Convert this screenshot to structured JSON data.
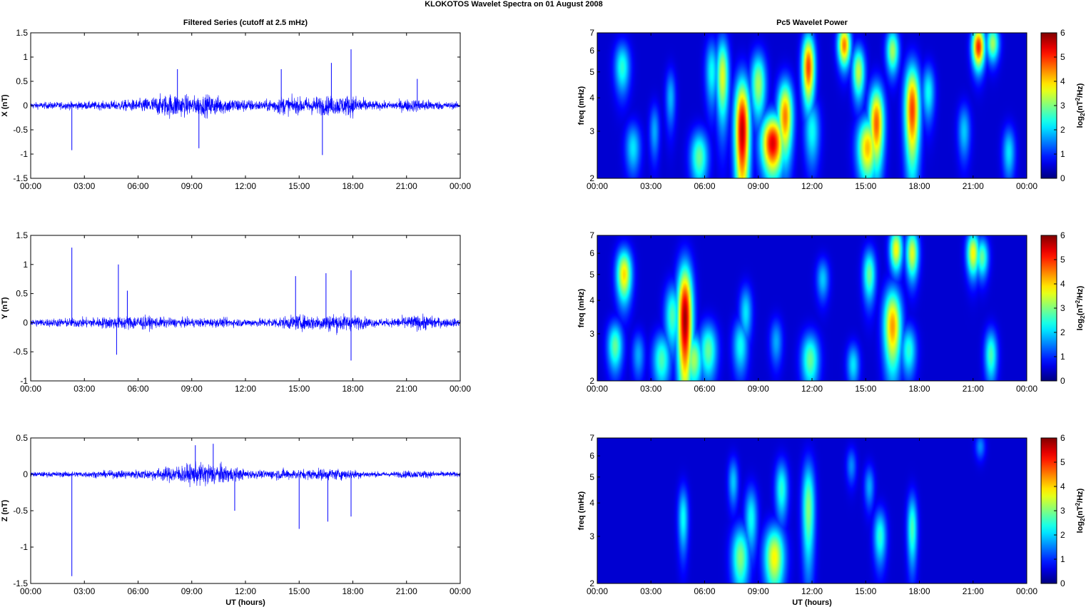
{
  "figure_title": "KLOKOTOS Wavelet Spectra on 01 August    2008",
  "left_title": "Filtered Series (cutoff at 2.5 mHz)",
  "right_title": "Pc5 Wavelet Power",
  "xlabel": "UT (hours)",
  "freq_label": "freq (mHz)",
  "x_ticks": [
    "00:00",
    "03:00",
    "06:00",
    "09:00",
    "12:00",
    "15:00",
    "18:00",
    "21:00",
    "00:00"
  ],
  "colors": {
    "series": "#0000ff",
    "axes": "#000000"
  },
  "chart_data": [
    {
      "type": "line",
      "ylabel": "X (nT)",
      "ylim": [
        -1.5,
        1.5
      ],
      "yticks": [
        -1.5,
        -1,
        -0.5,
        0,
        0.5,
        1,
        1.5
      ],
      "xlim": [
        0,
        24
      ],
      "envelope": {
        "x": [
          0,
          2,
          4,
          6,
          7,
          8,
          9,
          10,
          11,
          12,
          13,
          14,
          15,
          16,
          17,
          18,
          19,
          20,
          21,
          22,
          23,
          24
        ],
        "amplitude": [
          0.1,
          0.12,
          0.13,
          0.2,
          0.3,
          0.4,
          0.3,
          0.35,
          0.25,
          0.2,
          0.15,
          0.3,
          0.25,
          0.3,
          0.3,
          0.35,
          0.15,
          0.12,
          0.2,
          0.2,
          0.12,
          0.1
        ]
      },
      "spikes": [
        {
          "x": 2.3,
          "y": -0.92
        },
        {
          "x": 8.2,
          "y": 0.75
        },
        {
          "x": 9.4,
          "y": -0.88
        },
        {
          "x": 14.0,
          "y": 0.75
        },
        {
          "x": 16.3,
          "y": -1.02
        },
        {
          "x": 16.8,
          "y": 0.88
        },
        {
          "x": 17.9,
          "y": 1.16
        },
        {
          "x": 21.6,
          "y": 0.55
        }
      ]
    },
    {
      "type": "line",
      "ylabel": "Y (nT)",
      "ylim": [
        -1,
        1.5
      ],
      "yticks": [
        -1,
        -0.5,
        0,
        0.5,
        1,
        1.5
      ],
      "xlim": [
        0,
        24
      ],
      "envelope": {
        "x": [
          0,
          2,
          4,
          6,
          7,
          8,
          9,
          10,
          11,
          12,
          13,
          14,
          15,
          16,
          17,
          18,
          19,
          20,
          21,
          22,
          23,
          24
        ],
        "amplitude": [
          0.1,
          0.12,
          0.15,
          0.2,
          0.15,
          0.12,
          0.12,
          0.12,
          0.12,
          0.1,
          0.12,
          0.15,
          0.2,
          0.2,
          0.25,
          0.2,
          0.12,
          0.1,
          0.18,
          0.2,
          0.12,
          0.1
        ]
      },
      "spikes": [
        {
          "x": 2.3,
          "y": 1.29
        },
        {
          "x": 4.9,
          "y": 1.0
        },
        {
          "x": 5.4,
          "y": 0.55
        },
        {
          "x": 14.8,
          "y": 0.8
        },
        {
          "x": 16.5,
          "y": 0.85
        },
        {
          "x": 17.9,
          "y": 0.9
        },
        {
          "x": 17.9,
          "y": -0.65
        },
        {
          "x": 4.8,
          "y": -0.55
        }
      ]
    },
    {
      "type": "line",
      "ylabel": "Z (nT)",
      "ylim": [
        -1.5,
        0.5
      ],
      "yticks": [
        -1.5,
        -1,
        -0.5,
        0,
        0.5
      ],
      "xlim": [
        0,
        24
      ],
      "envelope": {
        "x": [
          0,
          2,
          4,
          6,
          7,
          8,
          9,
          10,
          11,
          12,
          13,
          14,
          15,
          16,
          17,
          18,
          19,
          20,
          21,
          22,
          23,
          24
        ],
        "amplitude": [
          0.05,
          0.06,
          0.07,
          0.1,
          0.12,
          0.18,
          0.22,
          0.25,
          0.18,
          0.1,
          0.08,
          0.12,
          0.1,
          0.12,
          0.12,
          0.1,
          0.06,
          0.05,
          0.08,
          0.08,
          0.06,
          0.05
        ]
      },
      "spikes": [
        {
          "x": 2.3,
          "y": -1.4
        },
        {
          "x": 9.2,
          "y": 0.4
        },
        {
          "x": 10.2,
          "y": 0.42
        },
        {
          "x": 15.0,
          "y": -0.75
        },
        {
          "x": 16.6,
          "y": -0.65
        },
        {
          "x": 17.9,
          "y": -0.58
        },
        {
          "x": 11.4,
          "y": -0.5
        }
      ]
    },
    {
      "type": "heatmap",
      "ylabel": "freq (mHz)",
      "colorbar_label": "log2(nT2/Hz)",
      "clim": [
        0,
        6
      ],
      "ylim": [
        2,
        7
      ],
      "yticks": [
        2,
        3,
        4,
        5,
        6,
        7
      ],
      "xlim": [
        0,
        24
      ],
      "blobs": [
        {
          "t": 1.4,
          "f": 5.2,
          "p": 2.2,
          "w": 0.3,
          "h": 1.6
        },
        {
          "t": 2.0,
          "f": 2.6,
          "p": 1.8,
          "w": 0.3,
          "h": 0.8
        },
        {
          "t": 5.7,
          "f": 2.4,
          "p": 2.6,
          "w": 0.35,
          "h": 0.8
        },
        {
          "t": 6.4,
          "f": 5.0,
          "p": 2.0,
          "w": 0.25,
          "h": 2.0
        },
        {
          "t": 7.0,
          "f": 4.8,
          "p": 3.4,
          "w": 0.25,
          "h": 2.4
        },
        {
          "t": 8.1,
          "f": 3.0,
          "p": 5.6,
          "w": 0.3,
          "h": 2.2
        },
        {
          "t": 9.0,
          "f": 4.5,
          "p": 3.0,
          "w": 0.3,
          "h": 1.8
        },
        {
          "t": 9.8,
          "f": 2.7,
          "p": 5.4,
          "w": 0.45,
          "h": 1.0
        },
        {
          "t": 10.5,
          "f": 3.4,
          "p": 4.4,
          "w": 0.3,
          "h": 1.6
        },
        {
          "t": 11.8,
          "f": 5.2,
          "p": 4.8,
          "w": 0.25,
          "h": 2.2
        },
        {
          "t": 12.0,
          "f": 3.0,
          "p": 2.0,
          "w": 0.3,
          "h": 1.2
        },
        {
          "t": 13.8,
          "f": 6.3,
          "p": 4.4,
          "w": 0.25,
          "h": 1.6
        },
        {
          "t": 14.6,
          "f": 5.0,
          "p": 3.2,
          "w": 0.25,
          "h": 1.6
        },
        {
          "t": 15.1,
          "f": 2.6,
          "p": 4.0,
          "w": 0.4,
          "h": 1.0
        },
        {
          "t": 15.6,
          "f": 3.2,
          "p": 4.6,
          "w": 0.3,
          "h": 1.6
        },
        {
          "t": 16.5,
          "f": 6.0,
          "p": 3.0,
          "w": 0.25,
          "h": 1.6
        },
        {
          "t": 17.6,
          "f": 3.6,
          "p": 4.8,
          "w": 0.3,
          "h": 2.2
        },
        {
          "t": 18.5,
          "f": 4.2,
          "p": 2.0,
          "w": 0.25,
          "h": 1.4
        },
        {
          "t": 20.5,
          "f": 3.0,
          "p": 1.6,
          "w": 0.25,
          "h": 1.0
        },
        {
          "t": 21.3,
          "f": 6.2,
          "p": 5.0,
          "w": 0.25,
          "h": 1.6
        },
        {
          "t": 22.1,
          "f": 6.4,
          "p": 3.0,
          "w": 0.25,
          "h": 1.4
        },
        {
          "t": 23.0,
          "f": 2.5,
          "p": 1.8,
          "w": 0.25,
          "h": 0.8
        },
        {
          "t": 4.1,
          "f": 4.0,
          "p": 1.5,
          "w": 0.2,
          "h": 1.4
        },
        {
          "t": 3.2,
          "f": 3.0,
          "p": 1.4,
          "w": 0.2,
          "h": 1.0
        }
      ]
    },
    {
      "type": "heatmap",
      "ylabel": "freq (mHz)",
      "colorbar_label": "log2(nT2/Hz)",
      "clim": [
        0,
        6
      ],
      "ylim": [
        2,
        7
      ],
      "yticks": [
        2,
        3,
        4,
        5,
        6,
        7
      ],
      "xlim": [
        0,
        24
      ],
      "blobs": [
        {
          "t": 1.0,
          "f": 2.7,
          "p": 2.6,
          "w": 0.3,
          "h": 0.8
        },
        {
          "t": 1.5,
          "f": 5.0,
          "p": 3.8,
          "w": 0.3,
          "h": 1.6
        },
        {
          "t": 3.6,
          "f": 2.4,
          "p": 2.4,
          "w": 0.35,
          "h": 0.8
        },
        {
          "t": 4.2,
          "f": 3.5,
          "p": 2.4,
          "w": 0.3,
          "h": 1.4
        },
        {
          "t": 4.9,
          "f": 3.4,
          "p": 5.8,
          "w": 0.3,
          "h": 2.6
        },
        {
          "t": 5.4,
          "f": 2.4,
          "p": 3.0,
          "w": 0.35,
          "h": 0.8
        },
        {
          "t": 6.2,
          "f": 2.6,
          "p": 2.6,
          "w": 0.35,
          "h": 0.9
        },
        {
          "t": 8.0,
          "f": 2.7,
          "p": 2.0,
          "w": 0.3,
          "h": 0.9
        },
        {
          "t": 8.3,
          "f": 3.6,
          "p": 1.8,
          "w": 0.25,
          "h": 1.2
        },
        {
          "t": 11.9,
          "f": 2.4,
          "p": 2.6,
          "w": 0.35,
          "h": 0.8
        },
        {
          "t": 12.6,
          "f": 4.8,
          "p": 1.6,
          "w": 0.25,
          "h": 1.2
        },
        {
          "t": 14.3,
          "f": 2.3,
          "p": 1.8,
          "w": 0.25,
          "h": 0.6
        },
        {
          "t": 15.2,
          "f": 5.0,
          "p": 2.6,
          "w": 0.25,
          "h": 1.6
        },
        {
          "t": 16.5,
          "f": 3.2,
          "p": 4.2,
          "w": 0.35,
          "h": 1.6
        },
        {
          "t": 16.7,
          "f": 6.2,
          "p": 3.6,
          "w": 0.25,
          "h": 1.6
        },
        {
          "t": 17.4,
          "f": 2.6,
          "p": 2.2,
          "w": 0.3,
          "h": 0.8
        },
        {
          "t": 17.6,
          "f": 6.0,
          "p": 3.4,
          "w": 0.25,
          "h": 1.8
        },
        {
          "t": 21.0,
          "f": 6.0,
          "p": 3.6,
          "w": 0.25,
          "h": 1.6
        },
        {
          "t": 21.5,
          "f": 5.8,
          "p": 2.6,
          "w": 0.25,
          "h": 1.4
        },
        {
          "t": 22.0,
          "f": 2.5,
          "p": 2.4,
          "w": 0.25,
          "h": 0.8
        },
        {
          "t": 2.3,
          "f": 2.5,
          "p": 1.4,
          "w": 0.25,
          "h": 0.7
        },
        {
          "t": 10.0,
          "f": 2.8,
          "p": 1.4,
          "w": 0.25,
          "h": 0.8
        }
      ]
    },
    {
      "type": "heatmap",
      "ylabel": "freq (mHz)",
      "colorbar_label": "log2(nT2/Hz)",
      "clim": [
        0,
        6
      ],
      "ylim": [
        2,
        7
      ],
      "yticks": [
        2,
        3,
        4,
        5,
        6,
        7
      ],
      "xlim": [
        0,
        24
      ],
      "blobs": [
        {
          "t": 4.8,
          "f": 3.5,
          "p": 2.0,
          "w": 0.2,
          "h": 1.4
        },
        {
          "t": 7.6,
          "f": 4.8,
          "p": 1.6,
          "w": 0.2,
          "h": 1.4
        },
        {
          "t": 8.0,
          "f": 2.5,
          "p": 2.8,
          "w": 0.35,
          "h": 1.0
        },
        {
          "t": 8.6,
          "f": 3.5,
          "p": 2.0,
          "w": 0.25,
          "h": 1.4
        },
        {
          "t": 9.9,
          "f": 2.5,
          "p": 3.6,
          "w": 0.4,
          "h": 1.0
        },
        {
          "t": 10.3,
          "f": 4.5,
          "p": 2.2,
          "w": 0.25,
          "h": 1.6
        },
        {
          "t": 11.8,
          "f": 3.8,
          "p": 2.8,
          "w": 0.25,
          "h": 2.4
        },
        {
          "t": 15.8,
          "f": 3.0,
          "p": 2.2,
          "w": 0.25,
          "h": 1.0
        },
        {
          "t": 17.6,
          "f": 3.2,
          "p": 2.4,
          "w": 0.2,
          "h": 1.4
        },
        {
          "t": 15.2,
          "f": 4.6,
          "p": 1.4,
          "w": 0.2,
          "h": 1.2
        },
        {
          "t": 14.2,
          "f": 5.5,
          "p": 1.2,
          "w": 0.2,
          "h": 1.2
        },
        {
          "t": 21.4,
          "f": 6.5,
          "p": 1.2,
          "w": 0.2,
          "h": 1.0
        }
      ]
    }
  ]
}
